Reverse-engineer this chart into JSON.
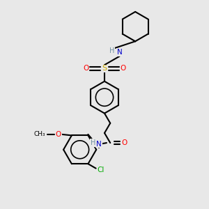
{
  "background_color": "#e8e8e8",
  "bond_color": "#000000",
  "atom_colors": {
    "N": "#0000cc",
    "O": "#ff0000",
    "S": "#ccaa00",
    "Cl": "#00aa00",
    "C": "#000000",
    "H": "#7090a0"
  },
  "figsize": [
    3.0,
    3.0
  ],
  "dpi": 100
}
